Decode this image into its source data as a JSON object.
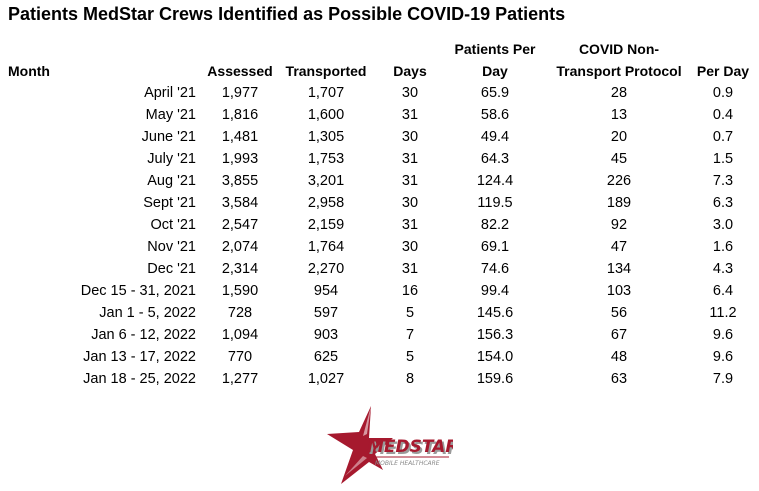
{
  "title": "Patients MedStar Crews Identified as Possible COVID-19 Patients",
  "headers": {
    "month": "Month",
    "assessed": "Assessed",
    "transported": "Transported",
    "days": "Days",
    "patients_per_day_line1": "Patients Per",
    "patients_per_day_line2": "Day",
    "covid_line1": "COVID Non-",
    "covid_line2": "Transport Protocol",
    "per_day": "Per Day"
  },
  "rows": [
    {
      "month": "April '21",
      "assessed": "1,977",
      "transported": "1,707",
      "days": "30",
      "patients_per_day": "65.9",
      "covid_non_transport": "28",
      "per_day": "0.9"
    },
    {
      "month": "May '21",
      "assessed": "1,816",
      "transported": "1,600",
      "days": "31",
      "patients_per_day": "58.6",
      "covid_non_transport": "13",
      "per_day": "0.4"
    },
    {
      "month": "June '21",
      "assessed": "1,481",
      "transported": "1,305",
      "days": "30",
      "patients_per_day": "49.4",
      "covid_non_transport": "20",
      "per_day": "0.7"
    },
    {
      "month": "July '21",
      "assessed": "1,993",
      "transported": "1,753",
      "days": "31",
      "patients_per_day": "64.3",
      "covid_non_transport": "45",
      "per_day": "1.5"
    },
    {
      "month": "Aug '21",
      "assessed": "3,855",
      "transported": "3,201",
      "days": "31",
      "patients_per_day": "124.4",
      "covid_non_transport": "226",
      "per_day": "7.3"
    },
    {
      "month": "Sept '21",
      "assessed": "3,584",
      "transported": "2,958",
      "days": "30",
      "patients_per_day": "119.5",
      "covid_non_transport": "189",
      "per_day": "6.3"
    },
    {
      "month": "Oct '21",
      "assessed": "2,547",
      "transported": "2,159",
      "days": "31",
      "patients_per_day": "82.2",
      "covid_non_transport": "92",
      "per_day": "3.0"
    },
    {
      "month": "Nov '21",
      "assessed": "2,074",
      "transported": "1,764",
      "days": "30",
      "patients_per_day": "69.1",
      "covid_non_transport": "47",
      "per_day": "1.6"
    },
    {
      "month": "Dec '21",
      "assessed": "2,314",
      "transported": "2,270",
      "days": "31",
      "patients_per_day": "74.6",
      "covid_non_transport": "134",
      "per_day": "4.3"
    },
    {
      "month": "Dec 15 - 31, 2021",
      "assessed": "1,590",
      "transported": "954",
      "days": "16",
      "patients_per_day": "99.4",
      "covid_non_transport": "103",
      "per_day": "6.4"
    },
    {
      "month": "Jan 1 - 5, 2022",
      "assessed": "728",
      "transported": "597",
      "days": "5",
      "patients_per_day": "145.6",
      "covid_non_transport": "56",
      "per_day": "11.2"
    },
    {
      "month": "Jan 6 - 12, 2022",
      "assessed": "1,094",
      "transported": "903",
      "days": "7",
      "patients_per_day": "156.3",
      "covid_non_transport": "67",
      "per_day": "9.6"
    },
    {
      "month": "Jan 13 - 17, 2022",
      "assessed": "770",
      "transported": "625",
      "days": "5",
      "patients_per_day": "154.0",
      "covid_non_transport": "48",
      "per_day": "9.6"
    },
    {
      "month": "Jan 18 - 25, 2022",
      "assessed": "1,277",
      "transported": "1,027",
      "days": "8",
      "patients_per_day": "159.6",
      "covid_non_transport": "63",
      "per_day": "7.9"
    }
  ],
  "logo": {
    "brand": "MEDSTAR",
    "tagline": "MOBILE HEALTHCARE",
    "star_color": "#a6192e",
    "text_color": "#a6192e",
    "shadow_color": "#9a9a9a"
  }
}
